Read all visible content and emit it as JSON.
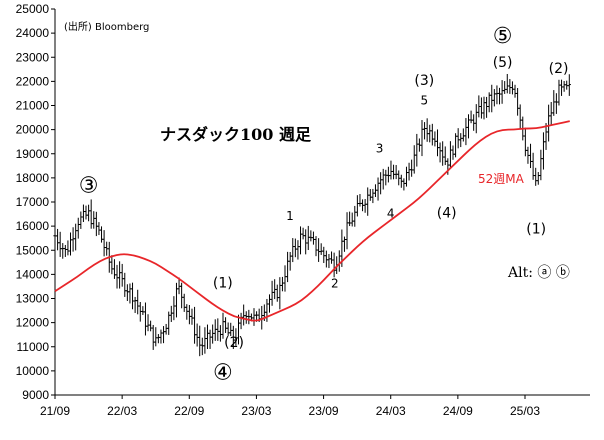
{
  "chart_data": {
    "type": "line",
    "title": "ナスダック100 週足",
    "source": "(出所)  Bloomberg",
    "ylim": [
      9000,
      25000
    ],
    "ytick_step": 1000,
    "x_ticks": [
      "21/09",
      "22/03",
      "22/09",
      "23/03",
      "23/09",
      "24/03",
      "24/09",
      "25/03"
    ],
    "series": [
      {
        "name": "",
        "style": "ohlc-bars",
        "color": "#000000",
        "anchors": [
          [
            "21/09",
            15600
          ],
          [
            "21/10",
            14900
          ],
          [
            "21/11",
            16200
          ],
          [
            "21/12",
            16500
          ],
          [
            "22/01",
            15700
          ],
          [
            "22/02",
            14300
          ],
          [
            "22/03",
            13700
          ],
          [
            "22/04",
            13100
          ],
          [
            "22/05",
            12100
          ],
          [
            "22/06",
            11200
          ],
          [
            "22/07",
            12000
          ],
          [
            "22/08",
            13500
          ],
          [
            "22/09",
            12300
          ],
          [
            "22/10",
            11000
          ],
          [
            "22/11",
            11500
          ],
          [
            "22/12",
            11800
          ],
          [
            "23/01",
            11300
          ],
          [
            "23/02",
            12500
          ],
          [
            "23/03",
            12100
          ],
          [
            "23/04",
            12900
          ],
          [
            "23/05",
            13300
          ],
          [
            "23/06",
            14700
          ],
          [
            "23/07",
            15600
          ],
          [
            "23/08",
            15300
          ],
          [
            "23/09",
            14800
          ],
          [
            "23/10",
            14400
          ],
          [
            "23/11",
            15800
          ],
          [
            "23/12",
            16700
          ],
          [
            "24/01",
            17300
          ],
          [
            "24/02",
            17900
          ],
          [
            "24/03",
            18300
          ],
          [
            "24/04",
            17700
          ],
          [
            "24/05",
            18700
          ],
          [
            "24/06",
            20100
          ],
          [
            "24/07",
            19700
          ],
          [
            "24/08",
            18600
          ],
          [
            "24/09",
            19700
          ],
          [
            "24/10",
            20200
          ],
          [
            "24/11",
            20800
          ],
          [
            "24/12",
            21300
          ],
          [
            "25/01",
            21500
          ],
          [
            "25/02",
            21900
          ],
          [
            "25/03",
            19400
          ],
          [
            "25/04",
            17600
          ],
          [
            "25/05",
            20300
          ],
          [
            "25/06",
            21600
          ],
          [
            "25/07",
            21700
          ]
        ]
      },
      {
        "name": "52週MA",
        "style": "line",
        "color": "#e8262a",
        "points": [
          [
            "21/09",
            13300
          ],
          [
            "21/10",
            13600
          ],
          [
            "21/11",
            13900
          ],
          [
            "21/12",
            14250
          ],
          [
            "22/01",
            14550
          ],
          [
            "22/02",
            14750
          ],
          [
            "22/03",
            14850
          ],
          [
            "22/04",
            14800
          ],
          [
            "22/05",
            14650
          ],
          [
            "22/06",
            14450
          ],
          [
            "22/07",
            14150
          ],
          [
            "22/08",
            13850
          ],
          [
            "22/09",
            13500
          ],
          [
            "22/10",
            13150
          ],
          [
            "22/11",
            12800
          ],
          [
            "22/12",
            12500
          ],
          [
            "23/01",
            12250
          ],
          [
            "23/02",
            12150
          ],
          [
            "23/03",
            12050
          ],
          [
            "23/04",
            12250
          ],
          [
            "23/05",
            12450
          ],
          [
            "23/06",
            12650
          ],
          [
            "23/07",
            12900
          ],
          [
            "23/08",
            13300
          ],
          [
            "23/09",
            13750
          ],
          [
            "23/10",
            14250
          ],
          [
            "23/11",
            14700
          ],
          [
            "23/12",
            15150
          ],
          [
            "24/01",
            15550
          ],
          [
            "24/02",
            15900
          ],
          [
            "24/03",
            16250
          ],
          [
            "24/04",
            16600
          ],
          [
            "24/05",
            16950
          ],
          [
            "24/06",
            17350
          ],
          [
            "24/07",
            17800
          ],
          [
            "24/08",
            18250
          ],
          [
            "24/09",
            18700
          ],
          [
            "24/10",
            19150
          ],
          [
            "24/11",
            19550
          ],
          [
            "24/12",
            19850
          ],
          [
            "25/01",
            20000
          ],
          [
            "25/02",
            20000
          ],
          [
            "25/03",
            20050
          ],
          [
            "25/04",
            20050
          ],
          [
            "25/05",
            20150
          ],
          [
            "25/06",
            20250
          ],
          [
            "25/07",
            20350
          ]
        ]
      }
    ],
    "annotations": [
      {
        "text": "③",
        "x": "21/12",
        "y": 17400,
        "size": "big"
      },
      {
        "text": "④",
        "x": "22/12",
        "y": 9650,
        "size": "big"
      },
      {
        "text": "⑤",
        "x": "25/01",
        "y": 23600,
        "size": "big"
      },
      {
        "text": "(1)",
        "x": "22/12",
        "y": 13450,
        "size": "md"
      },
      {
        "text": "(2)",
        "x": "23/01",
        "y": 11000,
        "size": "md"
      },
      {
        "text": "1",
        "x": "23/06",
        "y": 16250,
        "size": "sm"
      },
      {
        "text": "2",
        "x": "23/10",
        "y": 13450,
        "size": "sm"
      },
      {
        "text": "3",
        "x": "24/02",
        "y": 19050,
        "size": "sm"
      },
      {
        "text": "4",
        "x": "24/03",
        "y": 16350,
        "size": "sm"
      },
      {
        "text": "(3)",
        "x": "24/06",
        "y": 21850,
        "size": "md"
      },
      {
        "text": "5",
        "x": "24/06",
        "y": 21050,
        "size": "sm"
      },
      {
        "text": "(4)",
        "x": "24/08",
        "y": 16350,
        "size": "md"
      },
      {
        "text": "(5)",
        "x": "25/01",
        "y": 22600,
        "size": "md"
      },
      {
        "text": "(1)",
        "x": "25/04",
        "y": 15700,
        "size": "md"
      },
      {
        "text": "(2)",
        "x": "25/06",
        "y": 22350,
        "size": "md"
      }
    ],
    "ma_label": "52週MA",
    "alt_label": "Alt: ⓐ ⓑ",
    "grid": false
  }
}
